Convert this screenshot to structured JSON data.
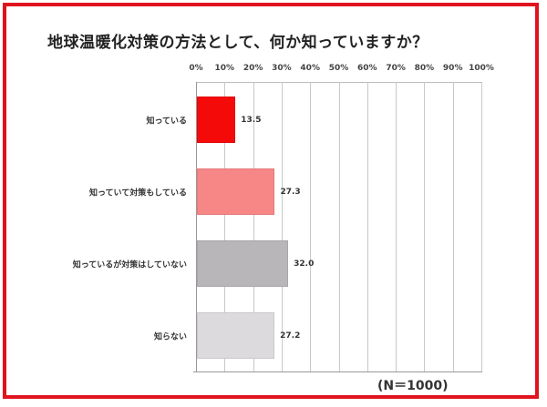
{
  "chart_data": {
    "type": "bar",
    "orientation": "horizontal",
    "title": "地球温暖化対策の方法として、何か知っていますか？",
    "categories": [
      "知っている",
      "知っていて対策もしている",
      "知っているが対策はしていない",
      "知らない"
    ],
    "values": [
      13.5,
      27.3,
      32.0,
      27.2
    ],
    "value_labels": [
      "13.5",
      "27.3",
      "32.0",
      "27.2"
    ],
    "colors": [
      "#f50a0a",
      "#f78686",
      "#b8b6b8",
      "#dcdadc"
    ],
    "xlabel": "",
    "ylabel": "",
    "xlim": [
      0,
      100
    ],
    "x_ticks": [
      "0%",
      "10%",
      "20%",
      "30%",
      "40%",
      "50%",
      "60%",
      "70%",
      "80%",
      "90%",
      "100%"
    ],
    "grid": true,
    "annotation": "(N＝1000)"
  },
  "frame_color": "#e0141e"
}
